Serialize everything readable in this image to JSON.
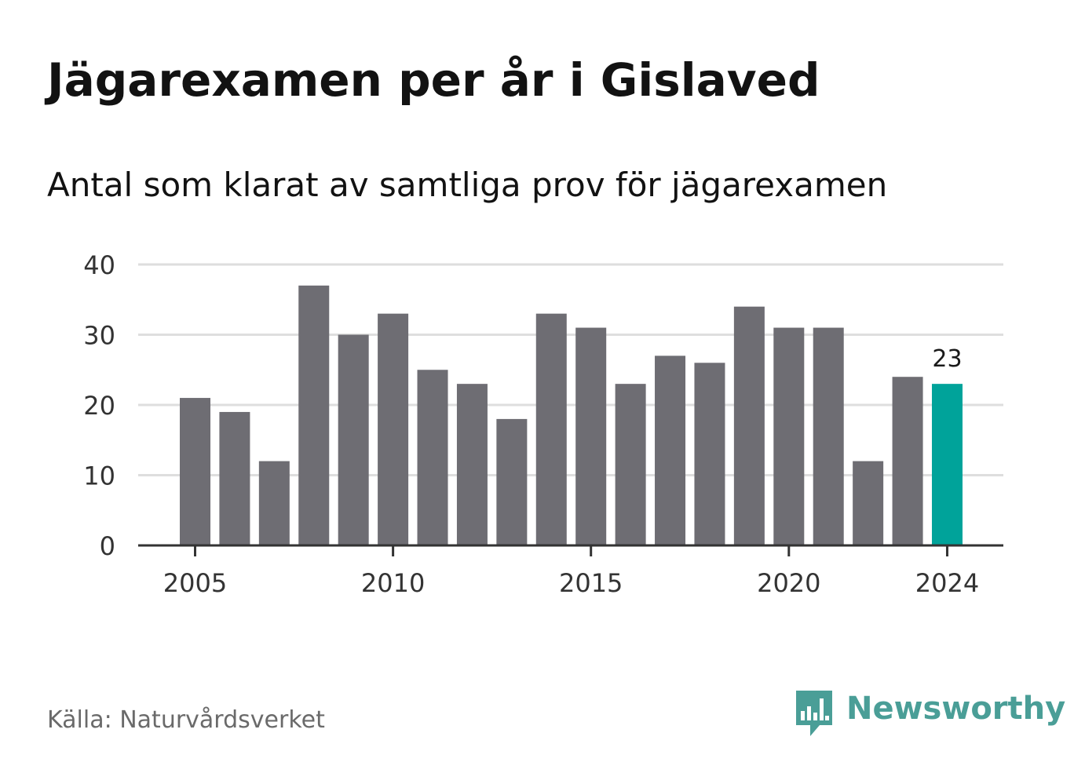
{
  "header": {
    "title": "Jägarexamen per år i Gislaved",
    "subtitle": "Antal som klarat av samtliga prov för jägarexamen"
  },
  "footer": {
    "source": "Källa: Naturvårdsverket",
    "brand": "Newsworthy",
    "brand_color": "#4a9e97",
    "brand_icon": "bar-chart-speech-bubble-icon"
  },
  "chart_data": {
    "type": "bar",
    "categories": [
      2005,
      2006,
      2007,
      2008,
      2009,
      2010,
      2011,
      2012,
      2013,
      2014,
      2015,
      2016,
      2017,
      2018,
      2019,
      2020,
      2021,
      2022,
      2023,
      2024
    ],
    "values": [
      21,
      19,
      12,
      37,
      30,
      33,
      25,
      23,
      18,
      33,
      31,
      23,
      27,
      26,
      34,
      31,
      31,
      12,
      24,
      23
    ],
    "x_tick_labels": [
      "2005",
      "2010",
      "2015",
      "2020",
      "2024"
    ],
    "y_ticks": [
      0,
      10,
      20,
      30,
      40
    ],
    "ylim": [
      0,
      40
    ],
    "grid": true,
    "bar_color": "#6e6d73",
    "highlight": {
      "category": 2024,
      "color": "#00a39a",
      "label": "23"
    },
    "title": "",
    "xlabel": "",
    "ylabel": ""
  }
}
